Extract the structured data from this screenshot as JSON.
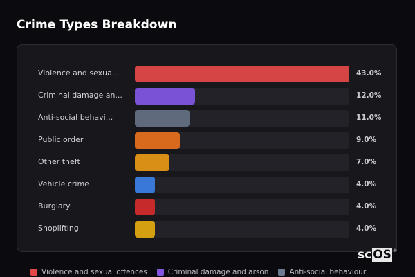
{
  "header": {
    "title": "Crime Types Breakdown"
  },
  "chart_data": {
    "type": "bar",
    "orientation": "horizontal",
    "title": "Crime Types Breakdown",
    "xlabel": "",
    "ylabel": "",
    "xlim": [
      0,
      43
    ],
    "grid": false,
    "legend_position": "bottom",
    "categories": [
      "Violence and sexual offences",
      "Criminal damage and arson",
      "Anti-social behaviour",
      "Public order",
      "Other theft",
      "Vehicle crime",
      "Burglary",
      "Shoplifting"
    ],
    "display_labels": [
      "Violence and sexua...",
      "Criminal damage an...",
      "Anti-social behavi...",
      "Public order",
      "Other theft",
      "Vehicle crime",
      "Burglary",
      "Shoplifting"
    ],
    "values": [
      43.0,
      12.0,
      11.0,
      9.0,
      7.0,
      4.0,
      4.0,
      4.0
    ],
    "value_labels": [
      "43.0%",
      "12.0%",
      "11.0%",
      "9.0%",
      "7.0%",
      "4.0%",
      "4.0%",
      "4.0%"
    ],
    "colors": [
      "#d64545",
      "#7a52d6",
      "#5f6b7d",
      "#d86a1e",
      "#d98f16",
      "#3a78d8",
      "#c62a2a",
      "#d4a012"
    ]
  },
  "legend": [
    {
      "label": "Violence and sexual offences",
      "color": "#e54848"
    },
    {
      "label": "Criminal damage and arson",
      "color": "#8455e0"
    },
    {
      "label": "Anti-social behaviour",
      "color": "#6c7a90"
    }
  ],
  "watermark": {
    "left": "sc",
    "right": "OS",
    "mark": "®"
  }
}
